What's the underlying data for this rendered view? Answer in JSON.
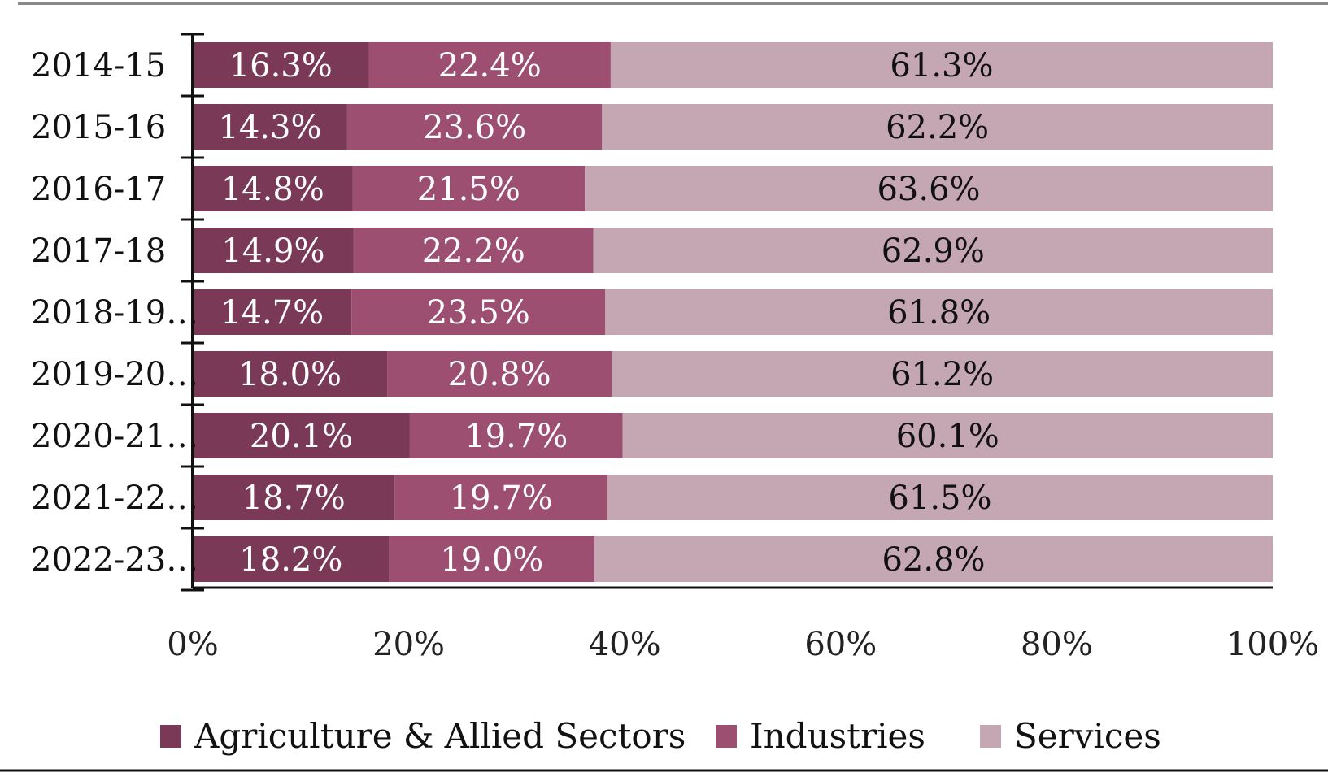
{
  "colors": {
    "agriculture": "#7a3a57",
    "industries": "#9c4f70",
    "services": "#c5a7b3",
    "axis": "#111111",
    "frame": "#8a8a8a"
  },
  "chart_data": {
    "type": "bar",
    "orientation": "horizontal",
    "stacked": true,
    "categories": [
      "2014-15",
      "2015-16",
      "2016-17",
      "2017-18",
      "2018-19…",
      "2019-20…",
      "2020-21…",
      "2021-22…",
      "2022-23…"
    ],
    "series": [
      {
        "name": "Agriculture & Allied Sectors",
        "values": [
          16.3,
          14.3,
          14.8,
          14.9,
          14.7,
          18.0,
          20.1,
          18.7,
          18.2
        ],
        "labels": [
          "16.3%",
          "14.3%",
          "14.8%",
          "14.9%",
          "14.7%",
          "18.0%",
          "20.1%",
          "18.7%",
          "18.2%"
        ],
        "color": "#7a3a57"
      },
      {
        "name": "Industries",
        "values": [
          22.4,
          23.6,
          21.5,
          22.2,
          23.5,
          20.8,
          19.7,
          19.7,
          19.0
        ],
        "labels": [
          "22.4%",
          "23.6%",
          "21.5%",
          "22.2%",
          "23.5%",
          "20.8%",
          "19.7%",
          "19.7%",
          "19.0%"
        ],
        "color": "#9c4f70"
      },
      {
        "name": "Services",
        "values": [
          61.3,
          62.2,
          63.6,
          62.9,
          61.8,
          61.2,
          60.1,
          61.5,
          62.8
        ],
        "labels": [
          "61.3%",
          "62.2%",
          "63.6%",
          "62.9%",
          "61.8%",
          "61.2%",
          "60.1%",
          "61.5%",
          "62.8%"
        ],
        "color": "#c5a7b3"
      }
    ],
    "xticks": [
      "0%",
      "20%",
      "40%",
      "60%",
      "80%",
      "100%"
    ],
    "xlim": [
      0,
      100
    ],
    "title": "",
    "xlabel": "",
    "ylabel": "",
    "grid": false,
    "legend": "bottom"
  }
}
